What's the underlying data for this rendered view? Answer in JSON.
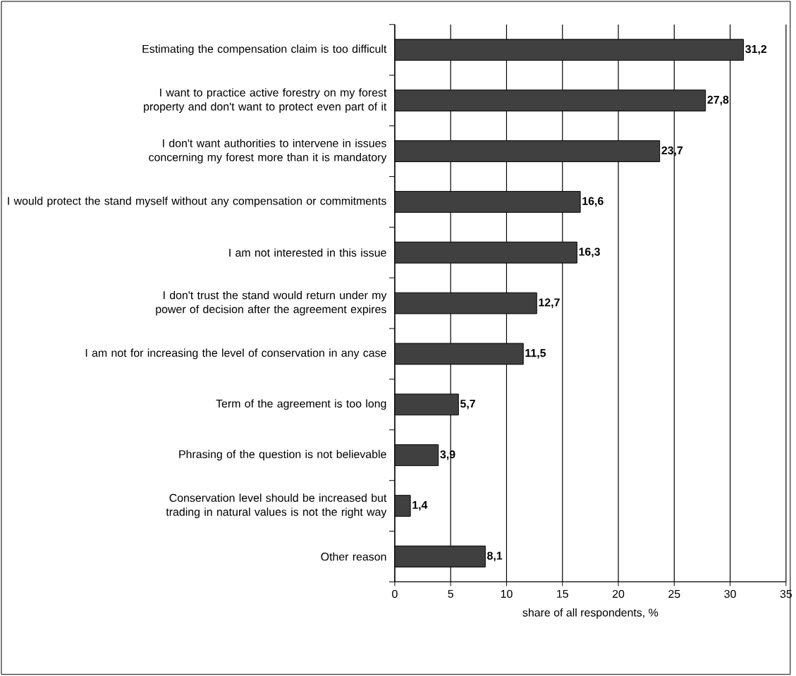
{
  "chart_data": {
    "type": "bar",
    "orientation": "horizontal",
    "xlabel": "share of all respondents, %",
    "categories": [
      "Estimating the compensation claim is too difficult",
      "I want to practice active forestry on my forest property and don't want to protect even part of it",
      "I don't want authorities to intervene in issues concerning my forest more than it is mandatory",
      "I would protect the stand myself without any compensation or commitments",
      "I am not interested in this issue",
      "I don't trust the stand would return under my power of decision after the agreement expires",
      "I am not for increasing the level of conservation in any case",
      "Term of the agreement is too long",
      "Phrasing of the question is not believable",
      "Conservation level should be increased but trading in natural values is not the right way",
      "Other reason"
    ],
    "values": [
      31.2,
      27.8,
      23.7,
      16.6,
      16.3,
      12.7,
      11.5,
      5.7,
      3.9,
      1.4,
      8.1
    ],
    "value_labels": [
      "31,2",
      "27,8",
      "23,7",
      "16,6",
      "16,3",
      "12,7",
      "11,5",
      "5,7",
      "3,9",
      "1,4",
      "8,1"
    ],
    "color": "#404040",
    "xlim": [
      0,
      35
    ],
    "xticks": [
      0,
      5,
      10,
      15,
      20,
      25,
      30,
      35
    ],
    "grid": "x"
  }
}
